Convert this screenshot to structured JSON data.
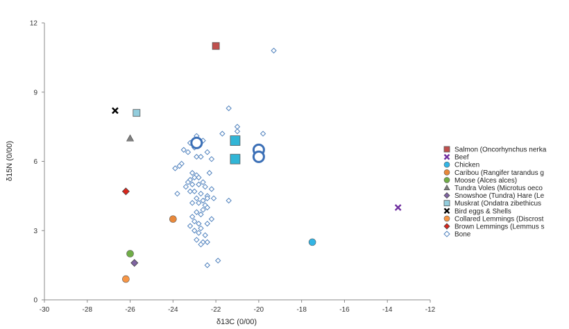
{
  "chart_data": {
    "type": "scatter",
    "title": "",
    "xlabel": "δ13C (0/00)",
    "ylabel": "δ15N (0/00)",
    "xlim": [
      -30,
      -12
    ],
    "ylim": [
      0,
      12
    ],
    "xticks": [
      -30,
      -28,
      -26,
      -24,
      -22,
      -20,
      -18,
      -16,
      -14,
      -12
    ],
    "yticks": [
      0,
      3,
      6,
      9,
      12
    ],
    "grid": false,
    "legend_position": "right",
    "series": [
      {
        "name": "Salmon (Oncorhynchus nerka",
        "marker": "square",
        "color": "#c0504d",
        "points": [
          [
            -22.0,
            11.0
          ]
        ]
      },
      {
        "name": "Beef",
        "marker": "x",
        "color": "#7030a0",
        "points": [
          [
            -13.5,
            4.0
          ]
        ]
      },
      {
        "name": "Chicken",
        "marker": "circle",
        "color": "#33b5e5",
        "points": [
          [
            -17.5,
            2.5
          ]
        ]
      },
      {
        "name": "Caribou (Rangifer tarandus g",
        "marker": "circle",
        "color": "#e8883a",
        "points": [
          [
            -24.0,
            3.5
          ]
        ]
      },
      {
        "name": "Moose (Alces alces)",
        "marker": "circle",
        "color": "#70ad47",
        "points": [
          [
            -26.0,
            2.0
          ]
        ]
      },
      {
        "name": "Tundra Voles (Microtus oeco",
        "marker": "triangle",
        "color": "#7f7f7f",
        "points": [
          [
            -26.0,
            7.0
          ]
        ]
      },
      {
        "name": "Snowshoe (Tundra) Hare (Le",
        "marker": "diamond",
        "color": "#8064a2",
        "points": [
          [
            -25.8,
            1.6
          ]
        ]
      },
      {
        "name": "Muskrat (Ondatra zibethicus",
        "marker": "square",
        "color": "#93cddd",
        "points": [
          [
            -25.7,
            8.1
          ]
        ]
      },
      {
        "name": "Bird eggs & Shells",
        "marker": "x",
        "color": "#000000",
        "points": [
          [
            -26.7,
            8.2
          ]
        ]
      },
      {
        "name": "Collared Lemmings (Discrost",
        "marker": "circle",
        "color": "#f79646",
        "points": [
          [
            -26.2,
            0.9
          ]
        ]
      },
      {
        "name": "Brown Lemmings (Lemmus s",
        "marker": "diamond",
        "color": "#d9261c",
        "points": [
          [
            -26.2,
            4.7
          ]
        ]
      },
      {
        "name": "Bone",
        "marker": "diamond-open",
        "color": "#4f81bd",
        "points": [
          [
            -19.3,
            10.8
          ],
          [
            -21.4,
            8.3
          ],
          [
            -21.0,
            7.5
          ],
          [
            -21.0,
            7.3
          ],
          [
            -21.7,
            7.2
          ],
          [
            -19.8,
            7.2
          ],
          [
            -22.9,
            7.1
          ],
          [
            -22.6,
            6.9
          ],
          [
            -23.2,
            6.8
          ],
          [
            -23.0,
            6.6
          ],
          [
            -23.5,
            6.5
          ],
          [
            -23.3,
            6.4
          ],
          [
            -22.4,
            6.4
          ],
          [
            -22.9,
            6.2
          ],
          [
            -22.7,
            6.2
          ],
          [
            -22.2,
            6.1
          ],
          [
            -23.6,
            5.9
          ],
          [
            -23.7,
            5.8
          ],
          [
            -23.9,
            5.7
          ],
          [
            -23.1,
            5.5
          ],
          [
            -22.9,
            5.4
          ],
          [
            -22.3,
            5.5
          ],
          [
            -23.2,
            5.2
          ],
          [
            -23.0,
            5.3
          ],
          [
            -22.8,
            5.3
          ],
          [
            -22.6,
            5.1
          ],
          [
            -23.3,
            5.1
          ],
          [
            -23.1,
            5.0
          ],
          [
            -22.8,
            5.0
          ],
          [
            -22.5,
            4.9
          ],
          [
            -22.2,
            4.8
          ],
          [
            -23.4,
            4.9
          ],
          [
            -23.2,
            4.7
          ],
          [
            -23.0,
            4.7
          ],
          [
            -22.7,
            4.6
          ],
          [
            -22.4,
            4.5
          ],
          [
            -23.8,
            4.6
          ],
          [
            -22.9,
            4.4
          ],
          [
            -22.6,
            4.3
          ],
          [
            -22.4,
            4.4
          ],
          [
            -22.1,
            4.4
          ],
          [
            -21.4,
            4.3
          ],
          [
            -23.1,
            4.2
          ],
          [
            -22.8,
            4.2
          ],
          [
            -22.5,
            4.1
          ],
          [
            -22.4,
            4.0
          ],
          [
            -22.6,
            3.9
          ],
          [
            -22.9,
            3.8
          ],
          [
            -22.7,
            3.7
          ],
          [
            -23.1,
            3.6
          ],
          [
            -22.2,
            3.5
          ],
          [
            -23.0,
            3.4
          ],
          [
            -22.8,
            3.3
          ],
          [
            -22.4,
            3.3
          ],
          [
            -23.2,
            3.2
          ],
          [
            -22.7,
            3.1
          ],
          [
            -23.0,
            3.0
          ],
          [
            -22.8,
            2.9
          ],
          [
            -22.5,
            2.8
          ],
          [
            -22.9,
            2.6
          ],
          [
            -22.6,
            2.5
          ],
          [
            -22.7,
            2.4
          ],
          [
            -22.4,
            2.5
          ],
          [
            -21.9,
            1.7
          ],
          [
            -22.4,
            1.5
          ]
        ]
      }
    ],
    "unlabeled_markers": [
      {
        "marker": "circle-open",
        "color": "#3b6fb6",
        "points": [
          [
            -22.9,
            6.8
          ],
          [
            -20.0,
            6.5
          ],
          [
            -20.0,
            6.2
          ]
        ]
      },
      {
        "marker": "square",
        "color": "#31b5d6",
        "points": [
          [
            -21.1,
            6.9
          ],
          [
            -21.1,
            6.1
          ]
        ]
      }
    ]
  }
}
